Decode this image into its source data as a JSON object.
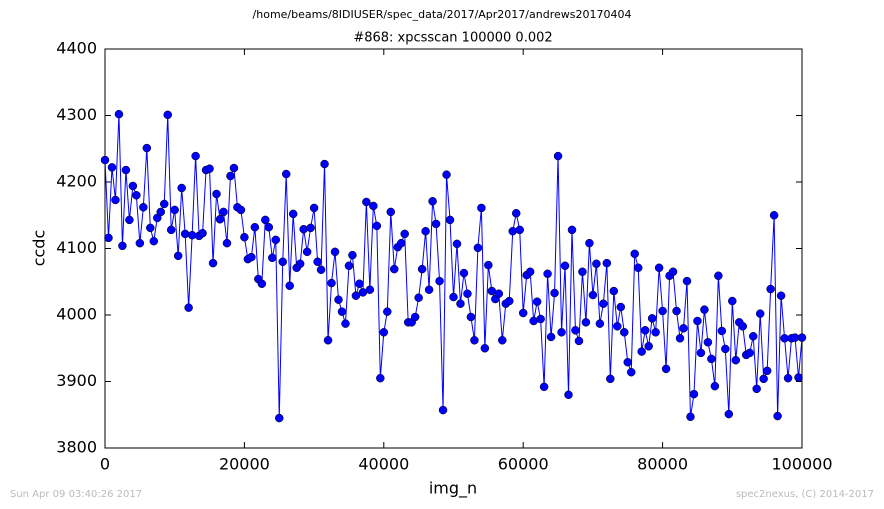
{
  "chart_data": {
    "type": "line",
    "suptitle": "/home/beams/8IDIUSER/spec_data/2017/Apr2017/andrews20170404",
    "title": "#868: xpcsscan 100000 0.002",
    "x_label": "img_n",
    "y_label": "ccdc",
    "xlim": [
      0,
      100000
    ],
    "ylim": [
      3800,
      4400
    ],
    "xticks": [
      0,
      20000,
      40000,
      60000,
      80000,
      100000
    ],
    "yticks": [
      3800,
      3900,
      4000,
      4100,
      4200,
      4300,
      4400
    ],
    "grid": false,
    "x": [
      0,
      500,
      1000,
      1500,
      2000,
      2500,
      3000,
      3500,
      4000,
      4500,
      5000,
      5500,
      6000,
      6500,
      7000,
      7500,
      8000,
      8500,
      9000,
      9500,
      10000,
      10500,
      11000,
      11500,
      12000,
      12500,
      13000,
      13500,
      14000,
      14500,
      15000,
      15500,
      16000,
      16500,
      17000,
      17500,
      18000,
      18500,
      19000,
      19500,
      20000,
      20500,
      21000,
      21500,
      22000,
      22500,
      23000,
      23500,
      24000,
      24500,
      25000,
      25500,
      26000,
      26500,
      27000,
      27500,
      28000,
      28500,
      29000,
      29500,
      30000,
      30500,
      31000,
      31500,
      32000,
      32500,
      33000,
      33500,
      34000,
      34500,
      35000,
      35500,
      36000,
      36500,
      37000,
      37500,
      38000,
      38500,
      39000,
      39500,
      40000,
      40500,
      41000,
      41500,
      42000,
      42500,
      43000,
      43500,
      44000,
      44500,
      45000,
      45500,
      46000,
      46500,
      47000,
      47500,
      48000,
      48500,
      49000,
      49500,
      50000,
      50500,
      51000,
      51500,
      52000,
      52500,
      53000,
      53500,
      54000,
      54500,
      55000,
      55500,
      56000,
      56500,
      57000,
      57500,
      58000,
      58500,
      59000,
      59500,
      60000,
      60500,
      61000,
      61500,
      62000,
      62500,
      63000,
      63500,
      64000,
      64500,
      65000,
      65500,
      66000,
      66500,
      67000,
      67500,
      68000,
      68500,
      69000,
      69500,
      70000,
      70500,
      71000,
      71500,
      72000,
      72500,
      73000,
      73500,
      74000,
      74500,
      75000,
      75500,
      76000,
      76500,
      77000,
      77500,
      78000,
      78500,
      79000,
      79500,
      80000,
      80500,
      81000,
      81500,
      82000,
      82500,
      83000,
      83500,
      84000,
      84500,
      85000,
      85500,
      86000,
      86500,
      87000,
      87500,
      88000,
      88500,
      89000,
      89500,
      90000,
      90500,
      91000,
      91500,
      92000,
      92500,
      93000,
      93500,
      94000,
      94500,
      95000,
      95500,
      96000,
      96500,
      97000,
      97500,
      98000,
      98500,
      99000,
      99500,
      100000
    ],
    "series": [
      {
        "name": "ccdc",
        "color": "#0000ff",
        "values": [
          4233,
          4116,
          4222,
          4173,
          4302,
          4104,
          4218,
          4143,
          4194,
          4180,
          4108,
          4162,
          4251,
          4131,
          4111,
          4146,
          4155,
          4167,
          4301,
          4128,
          4158,
          4089,
          4191,
          4122,
          4011,
          4120,
          4239,
          4119,
          4123,
          4218,
          4220,
          4078,
          4182,
          4144,
          4155,
          4108,
          4209,
          4221,
          4162,
          4158,
          4117,
          4084,
          4087,
          4132,
          4054,
          4047,
          4143,
          4132,
          4086,
          4113,
          3845,
          4080,
          4212,
          4044,
          4152,
          4071,
          4077,
          4129,
          4095,
          4131,
          4161,
          4080,
          4068,
          4227,
          3962,
          4048,
          4095,
          4023,
          4005,
          3987,
          4074,
          4090,
          4029,
          4047,
          4034,
          4170,
          4038,
          4164,
          4134,
          3905,
          3974,
          4005,
          4155,
          4069,
          4102,
          4108,
          4122,
          3989,
          3989,
          3997,
          4026,
          4069,
          4126,
          4038,
          4171,
          4137,
          4051,
          3857,
          4211,
          4143,
          4027,
          4107,
          4017,
          4063,
          4032,
          3997,
          3962,
          4101,
          4161,
          3950,
          4075,
          4036,
          4024,
          4032,
          3962,
          4017,
          4021,
          4126,
          4153,
          4128,
          4003,
          4060,
          4065,
          3991,
          4020,
          3994,
          3892,
          4062,
          3967,
          4033,
          4239,
          3974,
          4074,
          3880,
          4128,
          3977,
          3961,
          4065,
          3989,
          4108,
          4030,
          4077,
          3987,
          4017,
          4078,
          3904,
          4036,
          3983,
          4012,
          3974,
          3929,
          3914,
          4092,
          4071,
          3945,
          3977,
          3953,
          3995,
          3974,
          4071,
          4006,
          3919,
          4059,
          4065,
          4006,
          3965,
          3980,
          4051,
          3847,
          3881,
          3991,
          3943,
          4008,
          3959,
          3934,
          3893,
          4059,
          3976,
          3949,
          3851,
          4021,
          3932,
          3989,
          3983,
          3940,
          3943,
          3968,
          3889,
          4002,
          3904,
          3916,
          4039,
          4150,
          3848,
          4029,
          3965,
          3905,
          3965,
          3966,
          3906,
          3966
        ]
      }
    ]
  },
  "footer": {
    "left": "Sun Apr 09 03:40:26 2017",
    "right": "spec2nexus, (C) 2014-2017"
  }
}
